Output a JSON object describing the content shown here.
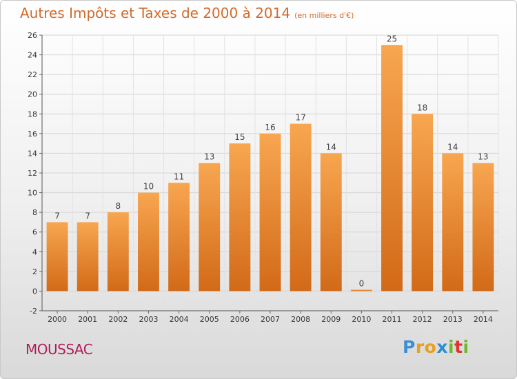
{
  "title": "Autres Impôts et Taxes de 2000 à 2014",
  "unit_label": "(en milliers d'€)",
  "commune": "MOUSSAC",
  "logo": {
    "letters": [
      "P",
      "r",
      "o",
      "x",
      "i",
      "t",
      "i"
    ],
    "colors": [
      "#3b8fd6",
      "#e8a020",
      "#e8a020",
      "#2a8fd0",
      "#6cb82e",
      "#e0342c",
      "#6cb82e"
    ]
  },
  "chart_data": {
    "type": "bar",
    "categories": [
      "2000",
      "2001",
      "2002",
      "2003",
      "2004",
      "2005",
      "2006",
      "2007",
      "2008",
      "2009",
      "2010",
      "2011",
      "2012",
      "2013",
      "2014"
    ],
    "values": [
      7,
      7,
      8,
      10,
      11,
      13,
      15,
      16,
      17,
      14,
      0,
      25,
      18,
      14,
      13
    ],
    "ylim": [
      -2,
      26
    ],
    "yticks": [
      -2,
      0,
      2,
      4,
      6,
      8,
      10,
      12,
      14,
      16,
      18,
      20,
      22,
      24,
      26
    ],
    "grid": true,
    "bar_color_top": "#f8a650",
    "bar_color_bottom": "#d26a18"
  }
}
